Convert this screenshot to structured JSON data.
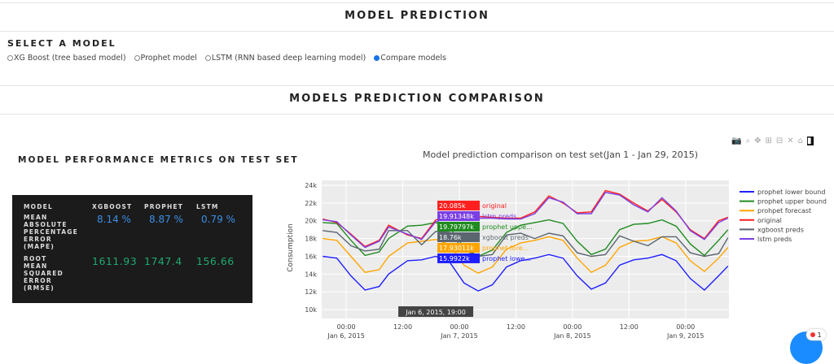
{
  "header": {
    "title": "MODEL PREDICTION"
  },
  "selector": {
    "title": "SELECT A MODEL",
    "options": [
      {
        "label": "XG Boost (tree based model)",
        "selected": false
      },
      {
        "label": "Prophet model",
        "selected": false
      },
      {
        "label": "LSTM (RNN based deep learning model)",
        "selected": false
      },
      {
        "label": "Compare models",
        "selected": true
      }
    ]
  },
  "comparison": {
    "title": "MODELS PREDICTION COMPARISON"
  },
  "metrics": {
    "title": "MODEL PERFORMANCE METRICS ON TEST SET",
    "headers": [
      "MODEL",
      "XGBOOST",
      "PROPHET",
      "LSTM"
    ],
    "rows": [
      {
        "label": "MEAN ABSOLUTE PERCENTAGE ERROR (MAPE)",
        "values": [
          "8.14 %",
          "8.87 %",
          "0.79 %"
        ]
      },
      {
        "label": "ROOT MEAN SQUARED ERROR (RMSE)",
        "values": [
          "1611.93",
          "1747.4",
          "156.66"
        ]
      }
    ]
  },
  "modebar": [
    "camera-icon",
    "zoom-icon",
    "pan-icon",
    "zoom-in-icon",
    "zoom-out-icon",
    "autoscale-icon",
    "home-icon",
    "plotly-logo-icon"
  ],
  "chart_data": {
    "type": "line",
    "title": "Model prediction comparison on test set(Jan 1 - Jan 29, 2015)",
    "ylabel": "Consumption",
    "xlabel": "",
    "x_unit": "hours since Jan 6, 2015 00:00",
    "xlim": [
      -5.2,
      81.2
    ],
    "ylim": [
      9.0,
      24.55
    ],
    "yticks": [
      {
        "v": 10,
        "label": "10k"
      },
      {
        "v": 12,
        "label": "12k"
      },
      {
        "v": 14,
        "label": "14k"
      },
      {
        "v": 16,
        "label": "16k"
      },
      {
        "v": 18,
        "label": "18k"
      },
      {
        "v": 20,
        "label": "20k"
      },
      {
        "v": 22,
        "label": "22k"
      },
      {
        "v": 24,
        "label": "24k"
      }
    ],
    "xticks": [
      {
        "v": 0,
        "label": "00:00",
        "sub": "Jan 6, 2015"
      },
      {
        "v": 12,
        "label": "12:00",
        "sub": ""
      },
      {
        "v": 24,
        "label": "00:00",
        "sub": "Jan 7, 2015"
      },
      {
        "v": 36,
        "label": "12:00",
        "sub": ""
      },
      {
        "v": 48,
        "label": "00:00",
        "sub": "Jan 8, 2015"
      },
      {
        "v": 60,
        "label": "12:00",
        "sub": ""
      },
      {
        "v": 72,
        "label": "00:00",
        "sub": "Jan 9, 2015"
      }
    ],
    "x": [
      -5,
      -2,
      1,
      4,
      7,
      9,
      13,
      16,
      19,
      22,
      25,
      28,
      31,
      34,
      37,
      40,
      43,
      46,
      49,
      52,
      55,
      58,
      61,
      64,
      67,
      70,
      73,
      76,
      79,
      81
    ],
    "series": [
      {
        "name": "prophet lower bound",
        "color": "#1f1fff",
        "values": [
          16.0,
          15.8,
          13.8,
          12.2,
          12.6,
          14.0,
          15.5,
          15.6,
          16.0,
          15.3,
          13.0,
          12.1,
          12.8,
          14.8,
          15.5,
          15.8,
          16.2,
          15.8,
          13.8,
          12.3,
          13.0,
          15.0,
          15.6,
          15.8,
          16.2,
          15.5,
          13.5,
          12.2,
          13.8,
          14.9
        ]
      },
      {
        "name": "prophet upper bound",
        "color": "#1f8a1f",
        "values": [
          19.8,
          19.7,
          17.8,
          16.1,
          16.5,
          18.0,
          19.4,
          19.5,
          19.8,
          19.2,
          17.0,
          16.0,
          16.7,
          18.7,
          19.5,
          19.8,
          20.1,
          19.7,
          17.7,
          16.2,
          16.8,
          19.0,
          19.6,
          19.7,
          20.1,
          19.4,
          17.4,
          16.1,
          17.8,
          19.0
        ]
      },
      {
        "name": "prohpet forecast",
        "color": "#ffa500",
        "values": [
          18.0,
          17.8,
          16.0,
          14.2,
          14.5,
          16.0,
          17.5,
          17.7,
          17.9,
          17.3,
          15.0,
          14.1,
          14.8,
          16.8,
          17.5,
          17.8,
          18.2,
          17.8,
          15.8,
          14.2,
          15.0,
          17.0,
          17.7,
          17.8,
          18.2,
          17.5,
          15.5,
          14.3,
          15.8,
          17.0
        ]
      },
      {
        "name": "original",
        "color": "#ff1f1f",
        "values": [
          20.2,
          19.8,
          18.5,
          17.1,
          17.8,
          19.5,
          18.4,
          18.0,
          20.1,
          20.5,
          20.5,
          20.5,
          20.4,
          20.3,
          20.3,
          21.0,
          22.8,
          22.0,
          20.9,
          21.0,
          23.4,
          23.0,
          22.0,
          21.1,
          22.4,
          21.0,
          19.0,
          18.0,
          20.0,
          20.4
        ]
      },
      {
        "name": "xgboost preds",
        "color": "#5a6570",
        "values": [
          18.9,
          18.7,
          17.2,
          16.6,
          16.8,
          18.9,
          18.9,
          17.3,
          18.8,
          18.7,
          16.7,
          16.0,
          16.2,
          18.4,
          18.6,
          18.0,
          18.6,
          18.3,
          16.4,
          16.0,
          16.2,
          18.3,
          17.7,
          17.2,
          18.2,
          18.2,
          16.4,
          16.0,
          16.3,
          18.1
        ]
      },
      {
        "name": "lstm preds",
        "color": "#7b3fe4",
        "values": [
          20.1,
          19.9,
          18.4,
          17.0,
          17.7,
          19.3,
          18.5,
          17.9,
          19.9,
          20.4,
          20.4,
          20.3,
          20.3,
          20.2,
          20.2,
          20.8,
          22.6,
          22.1,
          20.8,
          20.8,
          23.2,
          22.9,
          21.8,
          21.0,
          22.6,
          21.1,
          18.9,
          17.9,
          19.8,
          20.3
        ]
      }
    ],
    "hover": {
      "x_label": "Jan 6, 2015, 19:00",
      "x": 19,
      "items": [
        {
          "value": "20.085k",
          "name": "original",
          "y": 20.085,
          "bg": "#ff1f1f",
          "fg": "#ff1f1f"
        },
        {
          "value": "19.91348k",
          "name": "lstm preds",
          "y": 19.91,
          "bg": "#7b3fe4",
          "fg": "#7b3fe4"
        },
        {
          "value": "19.79797k",
          "name": "prophet uppe...",
          "y": 19.8,
          "bg": "#1f8a1f",
          "fg": "#1f8a1f"
        },
        {
          "value": "18.76k",
          "name": "xgboost preds",
          "y": 18.76,
          "bg": "#5a6570",
          "fg": "#5a6570"
        },
        {
          "value": "17.93011k",
          "name": "prophet fore...",
          "y": 17.93,
          "bg": "#ffa500",
          "fg": "#ffa500"
        },
        {
          "value": "15.9922k",
          "name": "prophet lowe...",
          "y": 15.99,
          "bg": "#1f1fff",
          "fg": "#1f1fff"
        }
      ]
    }
  },
  "notification": {
    "count": "1"
  }
}
